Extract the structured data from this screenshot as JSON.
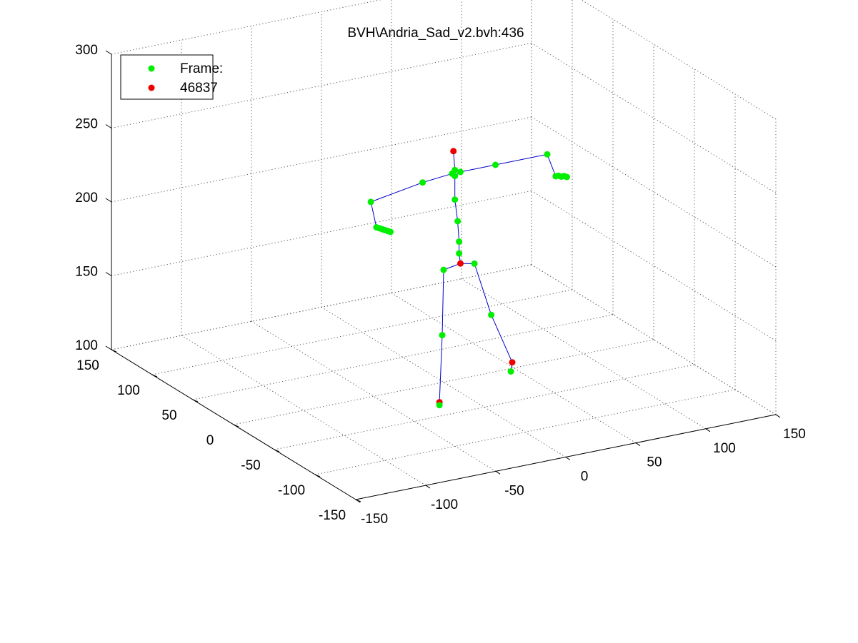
{
  "chart_data": {
    "type": "scatter",
    "title": "BVH\\Andria_Sad_v2.bvh:436",
    "xlabel": "",
    "ylabel": "",
    "zlabel": "",
    "grid": true,
    "legend_placement": "top-left",
    "legend": [
      "Frame:",
      "46837"
    ],
    "axes": {
      "x": {
        "lim": [
          -150,
          150
        ],
        "ticks": [
          -150,
          -100,
          -50,
          0,
          50,
          100,
          150
        ],
        "tick_labels": [
          "-150",
          "-100",
          "-50",
          "0",
          "50",
          "100",
          "150"
        ]
      },
      "y": {
        "lim": [
          -150,
          150
        ],
        "ticks": [
          -150,
          -100,
          -50,
          0,
          50,
          100,
          150
        ],
        "tick_labels": [
          "-150",
          "-100",
          "-50",
          "0",
          "50",
          "100",
          "150"
        ]
      },
      "z": {
        "lim": [
          100,
          300
        ],
        "ticks": [
          100,
          150,
          200,
          250,
          300
        ],
        "tick_labels": [
          "100",
          "150",
          "200",
          "250",
          "300"
        ]
      }
    },
    "colors": {
      "joint": "#00ee00",
      "end_site": "#ee0000",
      "bone": "#0000cc",
      "grid": "#555555",
      "axis": "#000000"
    },
    "joints": [
      {
        "name": "hips",
        "x": 12,
        "y": 0,
        "z": 178,
        "kind": "end"
      },
      {
        "name": "spine1",
        "x": 11,
        "y": 0,
        "z": 185,
        "kind": "joint"
      },
      {
        "name": "spine2",
        "x": 11,
        "y": 0,
        "z": 193,
        "kind": "joint"
      },
      {
        "name": "spine3",
        "x": 10,
        "y": 0,
        "z": 207,
        "kind": "joint"
      },
      {
        "name": "neck",
        "x": 8,
        "y": 0,
        "z": 222,
        "kind": "joint"
      },
      {
        "name": "neck_top",
        "x": 8,
        "y": 0,
        "z": 238,
        "kind": "joint"
      },
      {
        "name": "head",
        "x": 8,
        "y": 0,
        "z": 242,
        "kind": "joint"
      },
      {
        "name": "head_end",
        "x": 7,
        "y": 0,
        "z": 255,
        "kind": "end"
      },
      {
        "name": "l_collar",
        "x": 6,
        "y": 0,
        "z": 240,
        "kind": "joint"
      },
      {
        "name": "r_collar",
        "x": 12,
        "y": 0,
        "z": 240,
        "kind": "joint"
      },
      {
        "name": "l_shoulder",
        "x": -15,
        "y": 0,
        "z": 238,
        "kind": "joint"
      },
      {
        "name": "l_elbow",
        "x": -52,
        "y": 0,
        "z": 232,
        "kind": "joint"
      },
      {
        "name": "l_wrist",
        "x": -48,
        "y": 0,
        "z": 214,
        "kind": "joint"
      },
      {
        "name": "l_hand1",
        "x": -46,
        "y": 0,
        "z": 213,
        "kind": "joint"
      },
      {
        "name": "l_hand2",
        "x": -44,
        "y": 0,
        "z": 212,
        "kind": "joint"
      },
      {
        "name": "l_hand3",
        "x": -42,
        "y": 0,
        "z": 211,
        "kind": "joint"
      },
      {
        "name": "l_hand4",
        "x": -40,
        "y": 0,
        "z": 210,
        "kind": "joint"
      },
      {
        "name": "l_hand5",
        "x": -38,
        "y": 0,
        "z": 209,
        "kind": "joint"
      },
      {
        "name": "r_shoulder",
        "x": 37,
        "y": 0,
        "z": 240,
        "kind": "joint"
      },
      {
        "name": "r_elbow",
        "x": 74,
        "y": 0,
        "z": 240,
        "kind": "joint"
      },
      {
        "name": "r_wrist",
        "x": 80,
        "y": 0,
        "z": 224,
        "kind": "joint"
      },
      {
        "name": "r_hand1",
        "x": 82,
        "y": 0,
        "z": 224,
        "kind": "joint"
      },
      {
        "name": "r_hand2",
        "x": 84,
        "y": 0,
        "z": 223,
        "kind": "joint"
      },
      {
        "name": "r_hand3",
        "x": 86,
        "y": 0,
        "z": 223,
        "kind": "joint"
      },
      {
        "name": "r_hand4",
        "x": 88,
        "y": 0,
        "z": 222,
        "kind": "joint"
      },
      {
        "name": "l_hip",
        "x": 0,
        "y": 0,
        "z": 176,
        "kind": "joint"
      },
      {
        "name": "l_knee",
        "x": -1,
        "y": 0,
        "z": 132,
        "kind": "joint"
      },
      {
        "name": "l_ankle",
        "x": -3,
        "y": 0,
        "z": 87,
        "kind": "end"
      },
      {
        "name": "l_foot",
        "x": -3,
        "y": 0,
        "z": 85,
        "kind": "joint"
      },
      {
        "name": "r_hip",
        "x": 22,
        "y": 0,
        "z": 176,
        "kind": "joint"
      },
      {
        "name": "r_knee",
        "x": 34,
        "y": 0,
        "z": 139,
        "kind": "joint"
      },
      {
        "name": "r_ankle",
        "x": 49,
        "y": 0,
        "z": 104,
        "kind": "end"
      },
      {
        "name": "r_foot",
        "x": 48,
        "y": 0,
        "z": 98,
        "kind": "joint"
      }
    ],
    "bones": [
      [
        "hips",
        "spine1"
      ],
      [
        "spine1",
        "spine2"
      ],
      [
        "spine2",
        "spine3"
      ],
      [
        "spine3",
        "neck"
      ],
      [
        "neck",
        "neck_top"
      ],
      [
        "neck_top",
        "head"
      ],
      [
        "head",
        "head_end"
      ],
      [
        "neck_top",
        "l_collar"
      ],
      [
        "neck_top",
        "r_collar"
      ],
      [
        "l_collar",
        "l_shoulder"
      ],
      [
        "l_shoulder",
        "l_elbow"
      ],
      [
        "l_elbow",
        "l_wrist"
      ],
      [
        "l_wrist",
        "l_hand1"
      ],
      [
        "l_hand1",
        "l_hand2"
      ],
      [
        "l_hand2",
        "l_hand3"
      ],
      [
        "l_hand3",
        "l_hand4"
      ],
      [
        "l_hand4",
        "l_hand5"
      ],
      [
        "r_collar",
        "r_shoulder"
      ],
      [
        "r_shoulder",
        "r_elbow"
      ],
      [
        "r_elbow",
        "r_wrist"
      ],
      [
        "r_wrist",
        "r_hand1"
      ],
      [
        "r_hand1",
        "r_hand2"
      ],
      [
        "r_hand2",
        "r_hand3"
      ],
      [
        "r_hand3",
        "r_hand4"
      ],
      [
        "hips",
        "l_hip"
      ],
      [
        "l_hip",
        "l_knee"
      ],
      [
        "l_knee",
        "l_ankle"
      ],
      [
        "l_ankle",
        "l_foot"
      ],
      [
        "hips",
        "r_hip"
      ],
      [
        "r_hip",
        "r_knee"
      ],
      [
        "r_knee",
        "r_ankle"
      ],
      [
        "r_ankle",
        "r_foot"
      ]
    ]
  }
}
